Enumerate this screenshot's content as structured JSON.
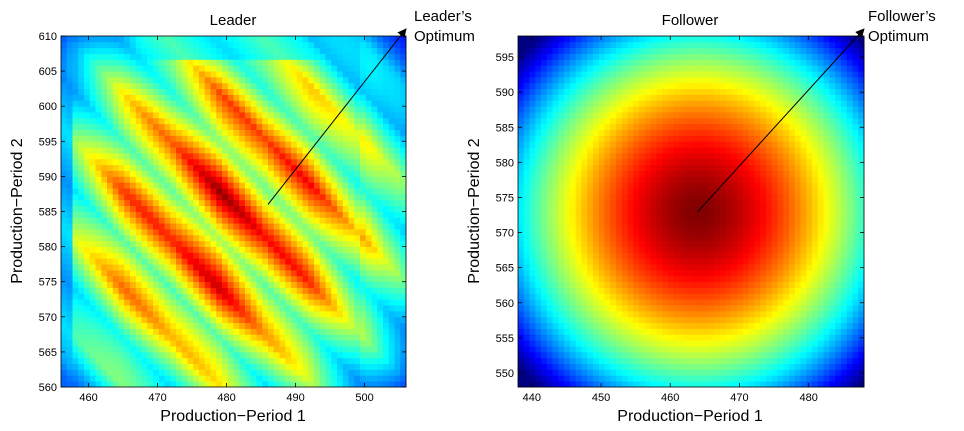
{
  "figure": {
    "background": "#ffffff"
  },
  "chart_data": [
    {
      "type": "heatmap",
      "panel": "left",
      "title": "Leader",
      "xlabel": "Production−Period 1",
      "ylabel": "Production−Period 2",
      "xlim": [
        456,
        506
      ],
      "ylim": [
        560,
        610
      ],
      "xticks": [
        460,
        470,
        480,
        490,
        500
      ],
      "yticks": [
        560,
        565,
        570,
        575,
        580,
        585,
        590,
        595,
        600,
        605,
        610
      ],
      "xtick_labels": [
        "460",
        "470",
        "480",
        "490",
        "500"
      ],
      "ytick_labels": [
        "560",
        "565",
        "570",
        "575",
        "580",
        "585",
        "590",
        "595",
        "600",
        "605",
        "610"
      ],
      "colormap": "jet",
      "optimum": {
        "x": 486,
        "y": 586
      },
      "annotation": {
        "lines": [
          "Leader’s",
          "Optimum"
        ],
        "x": 506,
        "y": 611
      },
      "step_boundaries_x": [
        458,
        472,
        486,
        499,
        503
      ]
    },
    {
      "type": "heatmap",
      "panel": "right",
      "title": "Follower",
      "xlabel": "Production−Period 1",
      "ylabel": "Production−Period 2",
      "xlim": [
        438,
        488
      ],
      "ylim": [
        548,
        598
      ],
      "xticks": [
        440,
        450,
        460,
        470,
        480
      ],
      "yticks": [
        550,
        555,
        560,
        565,
        570,
        575,
        580,
        585,
        590,
        595
      ],
      "xtick_labels": [
        "440",
        "450",
        "460",
        "470",
        "480"
      ],
      "ytick_labels": [
        "550",
        "555",
        "560",
        "565",
        "570",
        "575",
        "580",
        "585",
        "590",
        "595"
      ],
      "colormap": "jet",
      "optimum": {
        "x": 464,
        "y": 573
      },
      "annotation": {
        "lines": [
          "Follower’s",
          "Optimum"
        ],
        "x": 488,
        "y": 599
      }
    }
  ]
}
